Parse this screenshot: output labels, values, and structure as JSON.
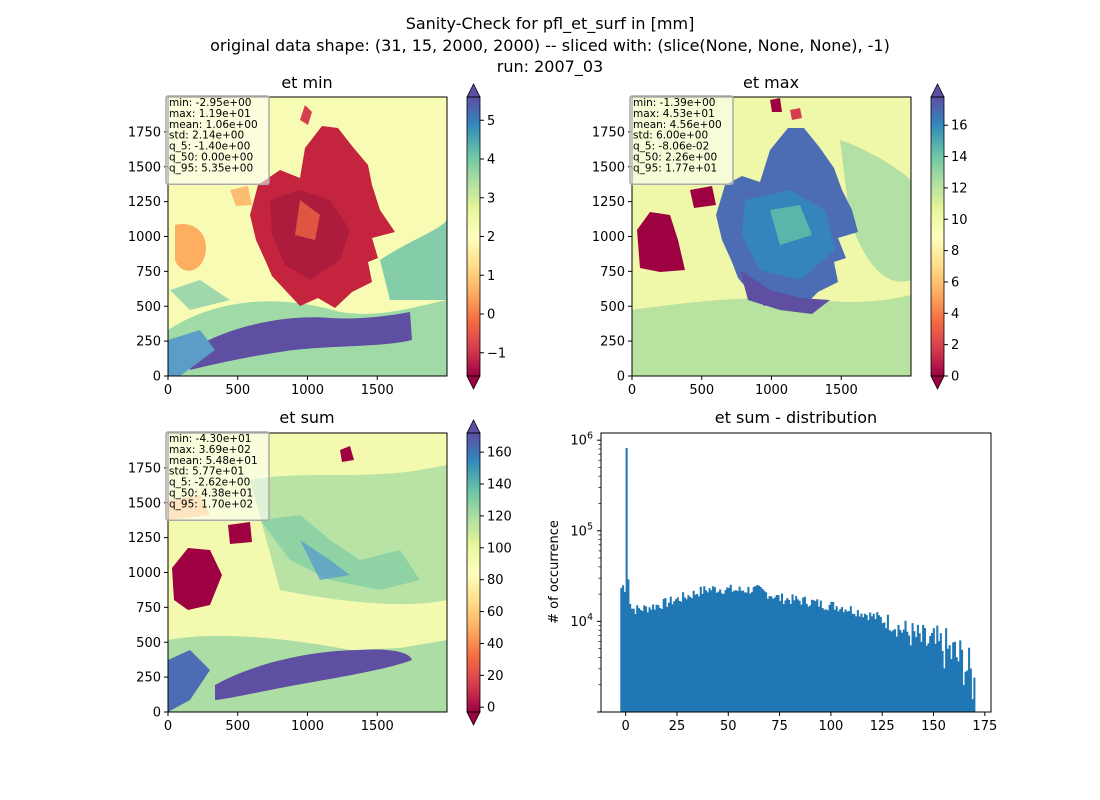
{
  "figure": {
    "title_lines": [
      "Sanity-Check for pfl_et_surf in [mm]",
      "original data shape: (31, 15, 2000, 2000) -- sliced with: (slice(None, None, None), -1)",
      "run: 2007_03"
    ]
  },
  "colors": {
    "spectral": [
      "#9e0142",
      "#d53e4f",
      "#f46d43",
      "#fdae61",
      "#fee08b",
      "#ffffbf",
      "#e6f598",
      "#abdda4",
      "#66c2a5",
      "#3288bd",
      "#5e4fa2"
    ],
    "histogram_bar": "#1f77b4",
    "frame": "#000000"
  },
  "chart_data": [
    {
      "type": "heatmap",
      "title": "et min",
      "xlim": [
        0,
        2000
      ],
      "ylim": [
        0,
        2000
      ],
      "x_ticks": [
        0,
        500,
        1000,
        1500
      ],
      "y_ticks": [
        0,
        250,
        500,
        750,
        1000,
        1250,
        1500,
        1750
      ],
      "colorbar": {
        "range": [
          -1.6,
          5.6
        ],
        "ticks": [
          -1,
          0,
          1,
          2,
          3,
          4,
          5
        ],
        "extend": "both"
      },
      "stats": [
        "min: -2.95e+00",
        "max: 1.19e+01",
        "mean: 1.06e+00",
        "std: 2.14e+00",
        "q_5: -1.40e+00",
        "q_50: 0.00e+00",
        "q_95: 5.35e+00"
      ]
    },
    {
      "type": "heatmap",
      "title": "et max",
      "xlim": [
        0,
        2000
      ],
      "ylim": [
        0,
        2000
      ],
      "x_ticks": [
        0,
        500,
        1000,
        1500
      ],
      "y_ticks": [
        0,
        250,
        500,
        750,
        1000,
        1250,
        1500,
        1750
      ],
      "colorbar": {
        "range": [
          0,
          17.8
        ],
        "ticks": [
          0,
          2,
          4,
          6,
          8,
          10,
          12,
          14,
          16
        ],
        "extend": "both"
      },
      "stats": [
        "min: -1.39e+00",
        "max: 4.53e+01",
        "mean: 4.56e+00",
        "std: 6.00e+00",
        "q_5: -8.06e-02",
        "q_50: 2.26e+00",
        "q_95: 1.77e+01"
      ]
    },
    {
      "type": "heatmap",
      "title": "et sum",
      "xlim": [
        0,
        2000
      ],
      "ylim": [
        0,
        2000
      ],
      "x_ticks": [
        0,
        500,
        1000,
        1500
      ],
      "y_ticks": [
        0,
        250,
        500,
        750,
        1000,
        1250,
        1500,
        1750
      ],
      "colorbar": {
        "range": [
          -3,
          172
        ],
        "ticks": [
          0,
          20,
          40,
          60,
          80,
          100,
          120,
          140,
          160
        ],
        "extend": "both"
      },
      "stats": [
        "min: -4.30e+01",
        "max: 3.69e+02",
        "mean: 5.48e+01",
        "std: 5.77e+01",
        "q_5: -2.62e+00",
        "q_50: 4.38e+01",
        "q_95: 1.70e+02"
      ]
    },
    {
      "type": "bar",
      "title": "et sum - distribution",
      "xlabel": "",
      "ylabel": "# of occurrence",
      "xlim": [
        -12,
        178
      ],
      "x_ticks": [
        0,
        25,
        50,
        75,
        100,
        125,
        150,
        175
      ],
      "y_scale": "log",
      "ylim": [
        1000,
        1200000
      ],
      "y_ticks": [
        {
          "value": 10000,
          "base": "10",
          "exp": "4"
        },
        {
          "value": 100000,
          "base": "10",
          "exp": "5"
        },
        {
          "value": 1000000,
          "base": "10",
          "exp": "6"
        }
      ],
      "histogram": {
        "bin_start": -2.6,
        "bin_width": 0.86,
        "spikes": [
          {
            "x": 0.0,
            "count": 820000
          },
          {
            "x": 0.86,
            "count": 29000
          }
        ],
        "profile": [
          [
            -2.6,
            23000
          ],
          [
            -1.0,
            25000
          ],
          [
            1.5,
            19000
          ],
          [
            3,
            14000
          ],
          [
            5,
            13500
          ],
          [
            10,
            14000
          ],
          [
            15,
            15000
          ],
          [
            20,
            16000
          ],
          [
            25,
            17500
          ],
          [
            30,
            19000
          ],
          [
            35,
            21000
          ],
          [
            40,
            22500
          ],
          [
            45,
            23000
          ],
          [
            50,
            22500
          ],
          [
            55,
            22000
          ],
          [
            60,
            22500
          ],
          [
            65,
            22000
          ],
          [
            70,
            20000
          ],
          [
            75,
            18000
          ],
          [
            80,
            17500
          ],
          [
            85,
            17000
          ],
          [
            90,
            16500
          ],
          [
            95,
            15500
          ],
          [
            100,
            15000
          ],
          [
            105,
            14500
          ],
          [
            110,
            13500
          ],
          [
            115,
            12500
          ],
          [
            120,
            11500
          ],
          [
            125,
            10500
          ],
          [
            130,
            9500
          ],
          [
            135,
            8000
          ],
          [
            140,
            7000
          ],
          [
            145,
            6000
          ],
          [
            150,
            5500
          ],
          [
            155,
            5000
          ],
          [
            160,
            4200
          ],
          [
            165,
            3500
          ],
          [
            168,
            2500
          ],
          [
            170.2,
            1800
          ]
        ]
      }
    }
  ]
}
